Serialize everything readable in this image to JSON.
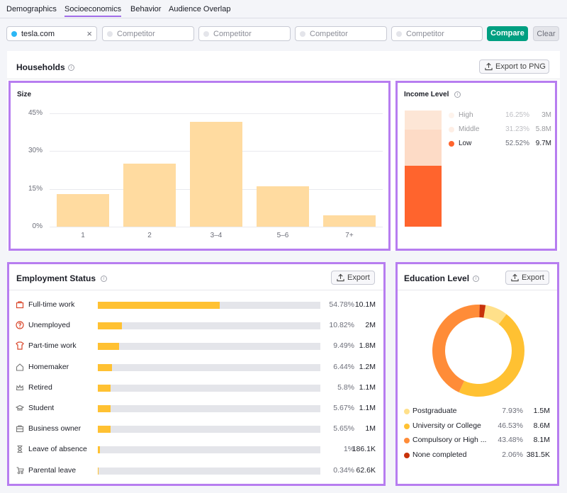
{
  "tabs": [
    {
      "label": "Demographics"
    },
    {
      "label": "Socioeconomics"
    },
    {
      "label": "Behavior"
    },
    {
      "label": "Audience Overlap"
    }
  ],
  "filters": {
    "domain": "tesla.com",
    "competitor_placeholder": "Competitor",
    "compare_label": "Compare",
    "clear_label": "Clear"
  },
  "households": {
    "title": "Households",
    "info": "i",
    "export_label": "Export to PNG"
  },
  "chart_data": [
    {
      "type": "bar",
      "title": "Size",
      "categories": [
        "1",
        "2",
        "3–4",
        "5–6",
        "7+"
      ],
      "values": [
        13,
        25,
        41.5,
        16,
        4.5
      ],
      "yticks": [
        "45%",
        "30%",
        "15%",
        "0%"
      ],
      "ylim": [
        0,
        45
      ],
      "color": "#ffdba0"
    },
    {
      "type": "bar",
      "title": "Income Level",
      "stacked": true,
      "series": [
        {
          "name": "High",
          "percent": "16.25%",
          "value_label": "3M",
          "share": 16.25,
          "color": "#fde6d6"
        },
        {
          "name": "Middle",
          "percent": "31.23%",
          "value_label": "5.8M",
          "share": 31.23,
          "color": "#fddbc6"
        },
        {
          "name": "Low",
          "percent": "52.52%",
          "value_label": "9.7M",
          "share": 52.52,
          "color": "#ff642d"
        }
      ]
    }
  ],
  "employment": {
    "title": "Employment Status",
    "info": "i",
    "export_label": "Export",
    "rows": [
      {
        "label": "Full-time work",
        "icon": "briefcase-icon",
        "percent": "54.78%",
        "value": "10.1M",
        "share": 54.78
      },
      {
        "label": "Unemployed",
        "icon": "question-icon",
        "percent": "10.82%",
        "value": "2M",
        "share": 10.82
      },
      {
        "label": "Part-time work",
        "icon": "shirt-icon",
        "percent": "9.49%",
        "value": "1.8M",
        "share": 9.49
      },
      {
        "label": "Homemaker",
        "icon": "home-icon",
        "percent": "6.44%",
        "value": "1.2M",
        "share": 6.44
      },
      {
        "label": "Retired",
        "icon": "crown-icon",
        "percent": "5.8%",
        "value": "1.1M",
        "share": 5.8
      },
      {
        "label": "Student",
        "icon": "graduation-cap-icon",
        "percent": "5.67%",
        "value": "1.1M",
        "share": 5.67
      },
      {
        "label": "Business owner",
        "icon": "briefcase-outline-icon",
        "percent": "5.65%",
        "value": "1M",
        "share": 5.65
      },
      {
        "label": "Leave of absence",
        "icon": "hourglass-icon",
        "percent": "1%",
        "value": "186.1K",
        "share": 1
      },
      {
        "label": "Parental leave",
        "icon": "stroller-icon",
        "percent": "0.34%",
        "value": "62.6K",
        "share": 0.34
      }
    ]
  },
  "education": {
    "title": "Education Level",
    "info": "i",
    "export_label": "Export",
    "rows": [
      {
        "label": "Postgraduate",
        "percent": "7.93%",
        "value": "1.5M",
        "share": 7.93,
        "color": "#ffe08a"
      },
      {
        "label": "University or College",
        "percent": "46.53%",
        "value": "8.6M",
        "share": 46.53,
        "color": "#ffc132"
      },
      {
        "label": "Compulsory or High ...",
        "percent": "43.48%",
        "value": "8.1M",
        "share": 43.48,
        "color": "#ff8c38"
      },
      {
        "label": "None completed",
        "percent": "2.06%",
        "value": "381.5K",
        "share": 2.06,
        "color": "#c8320a"
      }
    ]
  }
}
